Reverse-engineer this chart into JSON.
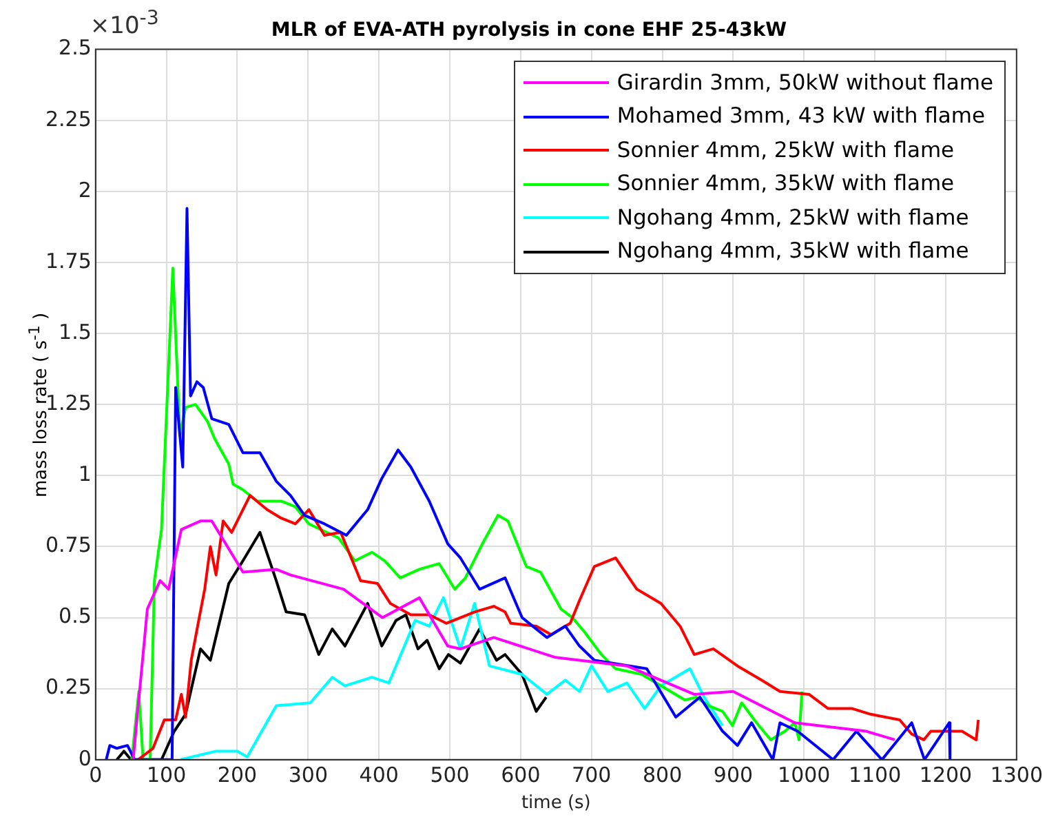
{
  "chart_data": {
    "type": "line",
    "title": "MLR of EVA-ATH pyrolysis in cone EHF 25-43kW",
    "xlabel": "time (s)",
    "ylabel": "mass loss rate ( s$^{-1}$ )",
    "annotations": [
      "×10$^{-3}$"
    ],
    "xlim": [
      0,
      1300
    ],
    "xticks": [
      0,
      100,
      200,
      300,
      400,
      500,
      600,
      700,
      800,
      900,
      1000,
      1100,
      1200,
      1300
    ],
    "ylim": [
      0,
      2.5
    ],
    "yticks": [
      0,
      0.25,
      0.5,
      0.75,
      1,
      1.25,
      1.5,
      1.75,
      2,
      2.25,
      2.5
    ],
    "grid": true,
    "legend": "top right",
    "marker": "none",
    "line_style": "solid",
    "series": [
      {
        "name": "Girardin 3mm, 50kW without flame",
        "color": "#ff00ff",
        "x": [
          53,
          73,
          91,
          103,
          121,
          148,
          164,
          208,
          255,
          275,
          350,
          405,
          457,
          497,
          515,
          562,
          649,
          750,
          845,
          900,
          987,
          1088,
          1128
        ],
        "values": [
          0,
          0.53,
          0.63,
          0.6,
          0.81,
          0.84,
          0.84,
          0.66,
          0.67,
          0.65,
          0.6,
          0.5,
          0.57,
          0.4,
          0.39,
          0.43,
          0.36,
          0.33,
          0.23,
          0.24,
          0.13,
          0.1,
          0.07
        ]
      },
      {
        "name": "Mohamed 3mm, 43 kW with flame",
        "color": "#0000ff",
        "x": [
          15,
          20,
          30,
          45,
          55,
          108,
          113,
          119,
          123,
          129,
          134,
          143,
          152,
          164,
          188,
          208,
          232,
          255,
          275,
          295,
          323,
          354,
          384,
          404,
          427,
          445,
          471,
          497,
          515,
          542,
          578,
          602,
          637,
          663,
          683,
          704,
          778,
          819,
          853,
          885,
          906,
          926,
          956,
          966,
          991,
          1041,
          1074,
          1110,
          1152,
          1170,
          1205,
          1206
        ],
        "values": [
          0,
          0.05,
          0.04,
          0.05,
          0,
          0,
          1.31,
          1.14,
          1.03,
          1.94,
          1.28,
          1.33,
          1.31,
          1.2,
          1.18,
          1.08,
          1.08,
          0.98,
          0.93,
          0.86,
          0.83,
          0.79,
          0.88,
          0.99,
          1.09,
          1.03,
          0.91,
          0.76,
          0.71,
          0.6,
          0.64,
          0.5,
          0.43,
          0.47,
          0.4,
          0.35,
          0.32,
          0.15,
          0.22,
          0.1,
          0.05,
          0.13,
          0,
          0.13,
          0.1,
          0,
          0.1,
          0,
          0.13,
          0,
          0.13,
          0
        ]
      },
      {
        "name": "Sonnier 4mm, 25kW with flame",
        "color": "#ff0000",
        "x": [
          60,
          81,
          97,
          113,
          121,
          127,
          135,
          144,
          154,
          162,
          170,
          180,
          192,
          218,
          242,
          262,
          282,
          301,
          323,
          346,
          374,
          398,
          416,
          445,
          471,
          495,
          535,
          562,
          578,
          586,
          622,
          643,
          670,
          683,
          704,
          734,
          764,
          798,
          825,
          845,
          872,
          906,
          940,
          966,
          1007,
          1034,
          1068,
          1094,
          1135,
          1152,
          1169,
          1179,
          1223,
          1243,
          1246
        ],
        "values": [
          0,
          0.04,
          0.14,
          0.14,
          0.23,
          0.15,
          0.35,
          0.47,
          0.6,
          0.75,
          0.65,
          0.84,
          0.8,
          0.93,
          0.88,
          0.85,
          0.83,
          0.88,
          0.79,
          0.8,
          0.63,
          0.62,
          0.55,
          0.51,
          0.51,
          0.48,
          0.52,
          0.54,
          0.52,
          0.48,
          0.47,
          0.44,
          0.48,
          0.56,
          0.68,
          0.71,
          0.6,
          0.55,
          0.47,
          0.37,
          0.39,
          0.33,
          0.28,
          0.24,
          0.23,
          0.18,
          0.18,
          0.16,
          0.14,
          0.09,
          0.07,
          0.1,
          0.1,
          0.07,
          0.14
        ]
      },
      {
        "name": "Sonnier 4mm, 35kW with flame",
        "color": "#00ff00",
        "x": [
          51,
          61,
          67,
          77,
          83,
          93,
          109,
          119,
          127,
          141,
          158,
          168,
          188,
          194,
          208,
          228,
          262,
          282,
          301,
          343,
          366,
          390,
          408,
          430,
          457,
          485,
          507,
          522,
          546,
          568,
          582,
          608,
          628,
          657,
          673,
          690,
          714,
          734,
          771,
          805,
          832,
          848,
          865,
          885,
          899,
          912,
          933,
          953,
          973,
          987,
          993,
          997
        ],
        "values": [
          0,
          0.24,
          0,
          0,
          0.63,
          0.81,
          1.73,
          1.14,
          1.24,
          1.25,
          1.19,
          1.13,
          1.04,
          0.97,
          0.95,
          0.91,
          0.91,
          0.89,
          0.83,
          0.78,
          0.7,
          0.73,
          0.7,
          0.64,
          0.67,
          0.69,
          0.6,
          0.64,
          0.76,
          0.86,
          0.84,
          0.68,
          0.66,
          0.53,
          0.5,
          0.45,
          0.37,
          0.32,
          0.3,
          0.25,
          0.21,
          0.22,
          0.19,
          0.17,
          0.12,
          0.2,
          0.13,
          0.07,
          0.1,
          0.13,
          0.07,
          0.24
        ]
      },
      {
        "name": "Ngohang 4mm, 25kW with flame",
        "color": "#00ffff",
        "x": [
          120,
          170,
          200,
          214,
          255,
          303,
          334,
          352,
          390,
          414,
          451,
          471,
          491,
          515,
          535,
          556,
          602,
          637,
          663,
          683,
          700,
          723,
          750,
          775,
          798,
          839,
          859,
          885
        ],
        "values": [
          0,
          0.03,
          0.03,
          0.01,
          0.19,
          0.2,
          0.29,
          0.26,
          0.29,
          0.27,
          0.49,
          0.47,
          0.57,
          0.39,
          0.55,
          0.33,
          0.3,
          0.23,
          0.28,
          0.24,
          0.33,
          0.24,
          0.27,
          0.18,
          0.26,
          0.32,
          0.22,
          0.12
        ]
      },
      {
        "name": "Ngohang 4mm, 35kW with flame",
        "color": "#000000",
        "x": [
          30,
          40,
          50,
          93,
          111,
          127,
          148,
          162,
          188,
          208,
          232,
          255,
          269,
          295,
          315,
          334,
          352,
          384,
          404,
          424,
          438,
          455,
          468,
          485,
          498,
          515,
          542,
          566,
          578,
          602,
          622,
          636
        ],
        "values": [
          0,
          0.03,
          0,
          0,
          0.1,
          0.16,
          0.39,
          0.35,
          0.62,
          0.7,
          0.8,
          0.63,
          0.52,
          0.51,
          0.37,
          0.46,
          0.4,
          0.55,
          0.4,
          0.49,
          0.51,
          0.39,
          0.42,
          0.32,
          0.37,
          0.34,
          0.46,
          0.35,
          0.37,
          0.3,
          0.17,
          0.22
        ]
      }
    ]
  }
}
